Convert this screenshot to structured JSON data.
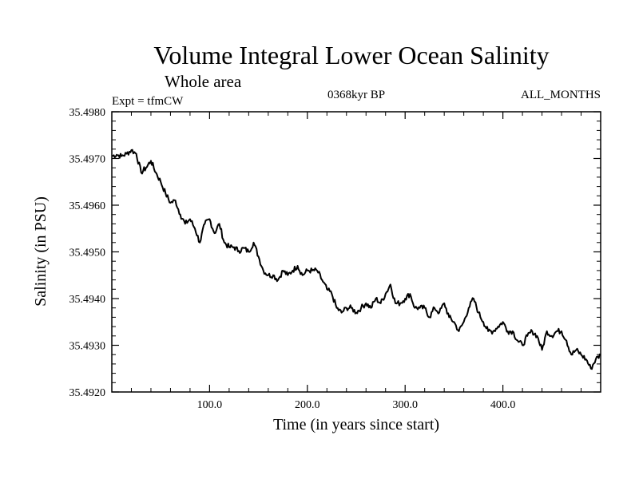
{
  "chart_data": {
    "type": "line",
    "title": "Volume Integral Lower Ocean Salinity",
    "subtitle": "Whole area",
    "experiment": "Expt = tfmCW",
    "period": "0368kyr BP",
    "months": "ALL_MONTHS",
    "xlabel": "Time (in years since start)",
    "ylabel": "Salinity (in PSU)",
    "xlim": [
      0,
      500
    ],
    "ylim": [
      35.492,
      35.498
    ],
    "xticks": [
      100,
      200,
      300,
      400
    ],
    "xtick_labels": [
      "100.0",
      "200.0",
      "300.0",
      "400.0"
    ],
    "yticks": [
      35.492,
      35.493,
      35.494,
      35.495,
      35.496,
      35.497,
      35.498
    ],
    "ytick_labels": [
      "35.4920",
      "35.4930",
      "35.4940",
      "35.4950",
      "35.4960",
      "35.4970",
      "35.4980"
    ],
    "series": [
      {
        "name": "salinity",
        "x": [
          0,
          5,
          10,
          15,
          20,
          25,
          30,
          35,
          40,
          45,
          50,
          55,
          60,
          65,
          70,
          75,
          80,
          85,
          90,
          95,
          100,
          105,
          110,
          115,
          120,
          125,
          130,
          135,
          140,
          145,
          150,
          155,
          160,
          165,
          170,
          175,
          180,
          185,
          190,
          195,
          200,
          205,
          210,
          215,
          220,
          225,
          230,
          235,
          240,
          245,
          250,
          255,
          260,
          265,
          270,
          275,
          280,
          285,
          290,
          295,
          300,
          305,
          310,
          315,
          320,
          325,
          330,
          335,
          340,
          345,
          350,
          355,
          360,
          365,
          370,
          375,
          380,
          385,
          390,
          395,
          400,
          405,
          410,
          415,
          420,
          425,
          430,
          435,
          440,
          445,
          450,
          455,
          460,
          465,
          470,
          475,
          480,
          485,
          490,
          495,
          500
        ],
        "values": [
          35.49705,
          35.49708,
          35.49705,
          35.4971,
          35.49718,
          35.4971,
          35.4967,
          35.4968,
          35.49695,
          35.4967,
          35.4965,
          35.49625,
          35.49605,
          35.4961,
          35.4958,
          35.4956,
          35.4957,
          35.4955,
          35.4952,
          35.4956,
          35.4957,
          35.4954,
          35.4956,
          35.4952,
          35.4951,
          35.4951,
          35.49502,
          35.49508,
          35.495,
          35.4952,
          35.4949,
          35.4946,
          35.4945,
          35.4945,
          35.4944,
          35.4946,
          35.4945,
          35.4946,
          35.4947,
          35.4945,
          35.4946,
          35.4946,
          35.4946,
          35.4944,
          35.4942,
          35.4941,
          35.4938,
          35.4937,
          35.4938,
          35.4938,
          35.4937,
          35.4938,
          35.4939,
          35.4938,
          35.494,
          35.4939,
          35.4941,
          35.4943,
          35.4939,
          35.4939,
          35.494,
          35.4941,
          35.4938,
          35.4938,
          35.4938,
          35.4936,
          35.4938,
          35.4937,
          35.4939,
          35.4936,
          35.4935,
          35.4933,
          35.4935,
          35.4938,
          35.494,
          35.4937,
          35.4935,
          35.4933,
          35.4933,
          35.4934,
          35.4935,
          35.4933,
          35.4933,
          35.4931,
          35.493,
          35.4932,
          35.4933,
          35.4932,
          35.4929,
          35.4933,
          35.4932,
          35.4933,
          35.4933,
          35.4931,
          35.4928,
          35.4929,
          35.4928,
          35.4927,
          35.4925,
          35.4927,
          35.4928
        ]
      }
    ]
  }
}
